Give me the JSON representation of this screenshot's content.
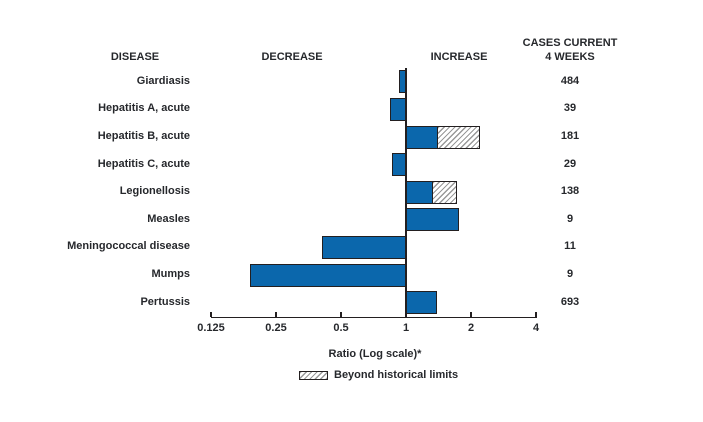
{
  "figure": {
    "headers": {
      "disease": "DISEASE",
      "decrease": "DECREASE",
      "increase": "INCREASE",
      "cases_line1": "CASES CURRENT",
      "cases_line2": "4 WEEKS"
    },
    "axis": {
      "title": "Ratio (Log scale)*",
      "tick_values": [
        0.125,
        0.25,
        0.5,
        1,
        2,
        4
      ],
      "tick_labels": [
        "0.125",
        "0.25",
        "0.5",
        "1",
        "2",
        "4"
      ]
    },
    "legend": {
      "beyond_label": "Beyond historical limits"
    },
    "colors": {
      "bar_blue": "#0B67AC",
      "bar_border": "#231F20",
      "hatch_line": "#999999",
      "text": "#26282C"
    }
  },
  "chart_data": {
    "type": "bar",
    "orientation": "horizontal",
    "scale": "log2",
    "xlabel": "Ratio (Log scale)*",
    "xlim": [
      0.125,
      4
    ],
    "grid": false,
    "legend_position": "bottom",
    "categories": [
      "Giardiasis",
      "Hepatitis A, acute",
      "Hepatitis B, acute",
      "Hepatitis C, acute",
      "Legionellosis",
      "Measles",
      "Meningococcal disease",
      "Mumps",
      "Pertussis"
    ],
    "rows": [
      {
        "disease": "Giardiasis",
        "ratio": 0.93,
        "beyond_limit": null,
        "cases": "484"
      },
      {
        "disease": "Hepatitis A, acute",
        "ratio": 0.84,
        "beyond_limit": null,
        "cases": "39"
      },
      {
        "disease": "Hepatitis B, acute",
        "ratio": 2.19,
        "beyond_limit": 1.41,
        "cases": "181"
      },
      {
        "disease": "Hepatitis C, acute",
        "ratio": 0.86,
        "beyond_limit": null,
        "cases": "29"
      },
      {
        "disease": "Legionellosis",
        "ratio": 1.72,
        "beyond_limit": 1.34,
        "cases": "138"
      },
      {
        "disease": "Measles",
        "ratio": 1.76,
        "beyond_limit": null,
        "cases": "9"
      },
      {
        "disease": "Meningococcal disease",
        "ratio": 0.41,
        "beyond_limit": null,
        "cases": "11"
      },
      {
        "disease": "Mumps",
        "ratio": 0.19,
        "beyond_limit": null,
        "cases": "9"
      },
      {
        "disease": "Pertussis",
        "ratio": 1.39,
        "beyond_limit": null,
        "cases": "693"
      }
    ]
  }
}
